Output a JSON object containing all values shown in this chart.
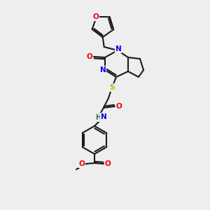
{
  "background_color": "#eeeeee",
  "bond_color": "#1a1a1a",
  "atom_colors": {
    "N": "#0000ee",
    "O": "#ee0000",
    "S": "#bbbb00",
    "H": "#336666",
    "C": "#1a1a1a"
  },
  "figsize": [
    3.0,
    3.0
  ],
  "dpi": 100,
  "lw": 1.5,
  "fontsize": 8.0
}
